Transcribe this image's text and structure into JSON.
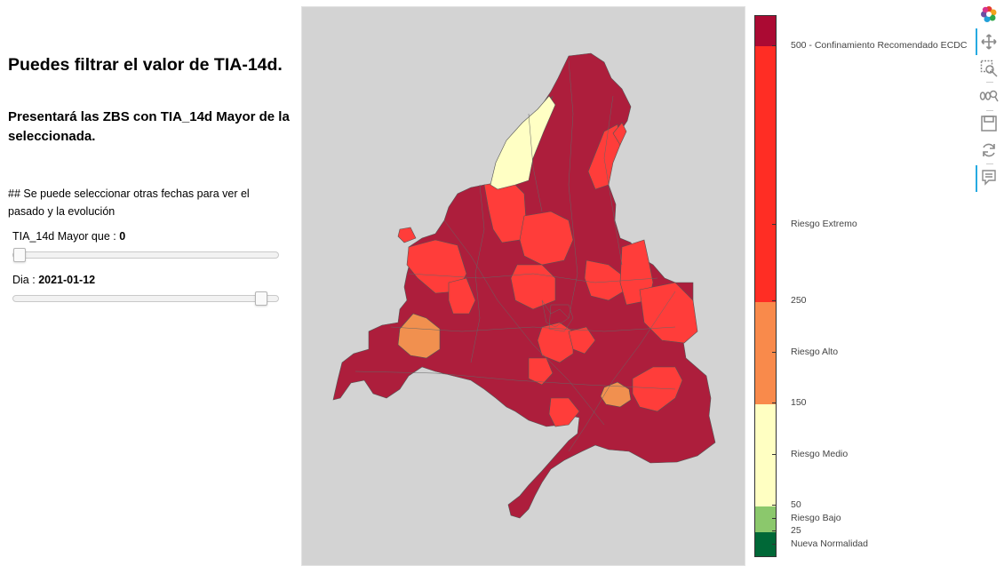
{
  "sidebar": {
    "heading": "Puedes filtrar el valor de TIA-14d.",
    "subheading": "Presentará las ZBS con TIA_14d Mayor de la seleccionada.",
    "note": "## Se puede seleccionar otras fechas para ver el pasado y la evolución",
    "tia_slider": {
      "label": "TIA_14d Mayor que : ",
      "value": "0",
      "fraction": 0.0
    },
    "date_slider": {
      "label": "Dia : ",
      "value": "2021-01-12",
      "fraction": 0.95
    }
  },
  "map": {
    "background": "#d3d3d3",
    "region_fill": "#ad1e3c",
    "colors": {
      "extremo": "#ff2d24",
      "alto": "#f98a4b",
      "medio": "#ffffc2",
      "bajo": "#8bc86c",
      "nueva": "#006837",
      "ecdc": "#ab0a33"
    }
  },
  "colorbar": {
    "labels": {
      "ecdc": "500 - Confinamiento Recomendado ECDC",
      "extremo": "Riesgo Extremo",
      "v250": "250",
      "alto": "Riesgo Alto",
      "v150": "150",
      "medio": "Riesgo Medio",
      "v50": "50",
      "bajo": "Riesgo Bajo",
      "v25": "25",
      "nueva": "Nueva Normalidad"
    }
  },
  "toolbar": {
    "tools": [
      "bokeh-logo-icon",
      "pan-icon",
      "box-zoom-icon",
      "wheel-zoom-icon",
      "save-icon",
      "reset-icon",
      "hover-icon"
    ]
  }
}
